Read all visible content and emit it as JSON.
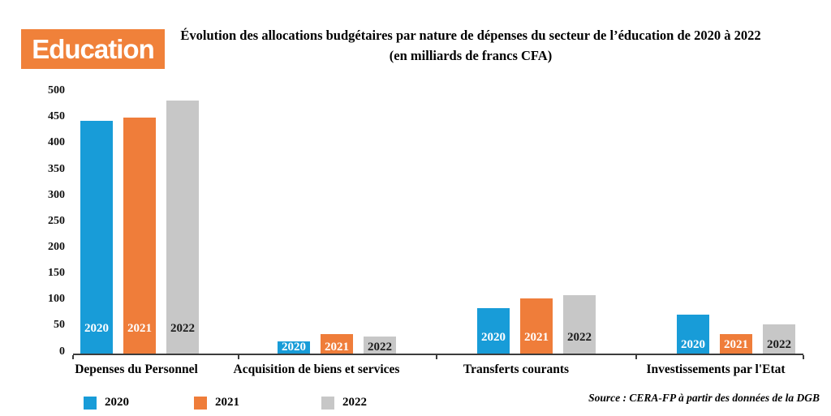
{
  "badge": {
    "label": "Education",
    "bg_color": "#f0813a",
    "text_color": "#ffffff"
  },
  "title": {
    "line1": "Évolution des allocations budgétaires par nature de dépenses du secteur de l’éducation de 2020 à 2022",
    "line2": "(en milliards de francs CFA)"
  },
  "chart_data": {
    "type": "bar",
    "categories": [
      "Depenses du Personnel",
      "Acquisition de biens et services",
      "Transferts courants",
      "Investissements par l'Etat"
    ],
    "series": [
      {
        "name": "2020",
        "color": "#189cd8",
        "label_color": "#ffffff",
        "values": [
          447,
          25,
          88,
          76
        ]
      },
      {
        "name": "2021",
        "color": "#ef7d3a",
        "label_color": "#ffffff",
        "values": [
          453,
          39,
          107,
          39
        ]
      },
      {
        "name": "2022",
        "color": "#c7c7c7",
        "label_color": "#1a1a1a",
        "values": [
          486,
          34,
          114,
          57
        ]
      }
    ],
    "ylim": [
      0,
      500
    ],
    "ytick_step": 50,
    "yticks": [
      0,
      50,
      100,
      150,
      200,
      250,
      300,
      350,
      400,
      450,
      500
    ],
    "grid": false,
    "legend_position": "bottom",
    "bar_labels": "series year shown inside each bar near its base",
    "axis_color": "#3c3c3c"
  },
  "source": {
    "text": "Source : CERA-FP à partir des données de la DGB"
  }
}
